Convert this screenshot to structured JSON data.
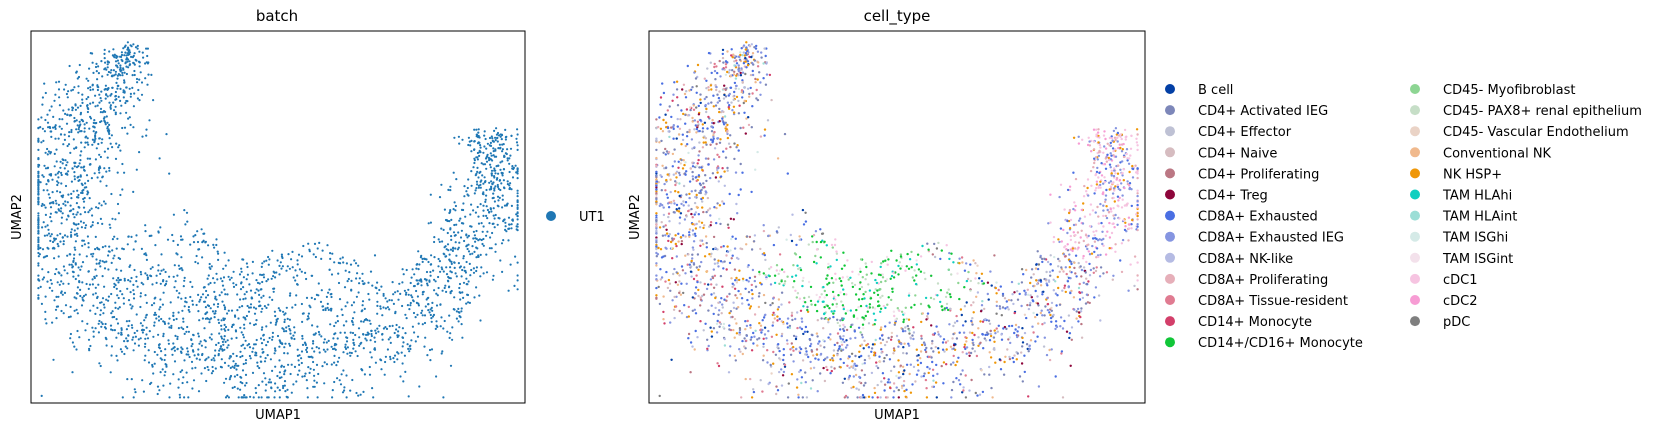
{
  "chart_data": [
    {
      "type": "scatter",
      "title": "batch",
      "xlabel": "UMAP1",
      "ylabel": "UMAP2",
      "grid": false,
      "legend_position": "right",
      "series": [
        {
          "name": "UT1",
          "color": "#1f77b4"
        }
      ]
    },
    {
      "type": "scatter",
      "title": "cell_type",
      "xlabel": "UMAP1",
      "ylabel": "UMAP2",
      "grid": false,
      "legend_position": "right",
      "series": [
        {
          "name": "B cell",
          "color": "#023fa5"
        },
        {
          "name": "CD4+ Activated IEG",
          "color": "#7d87b9"
        },
        {
          "name": "CD4+ Effector",
          "color": "#bec1d4"
        },
        {
          "name": "CD4+ Naive",
          "color": "#d6bcc0"
        },
        {
          "name": "CD4+ Proliferating",
          "color": "#bb7784"
        },
        {
          "name": "CD4+ Treg",
          "color": "#8e063b"
        },
        {
          "name": "CD8A+ Exhausted",
          "color": "#4a6fe3"
        },
        {
          "name": "CD8A+ Exhausted IEG",
          "color": "#8595e1"
        },
        {
          "name": "CD8A+ NK-like",
          "color": "#b5bbe3"
        },
        {
          "name": "CD8A+ Proliferating",
          "color": "#e6afb9"
        },
        {
          "name": "CD8A+ Tissue-resident",
          "color": "#e07b91"
        },
        {
          "name": "CD14+ Monocyte",
          "color": "#d33f6a"
        },
        {
          "name": "CD14+/CD16+ Monocyte",
          "color": "#11c638"
        },
        {
          "name": "CD45- Myofibroblast",
          "color": "#8dd593"
        },
        {
          "name": "CD45- PAX8+ renal epithelium",
          "color": "#c6dec7"
        },
        {
          "name": "CD45- Vascular Endothelium",
          "color": "#ead3c6"
        },
        {
          "name": "Conventional NK",
          "color": "#f0b98d"
        },
        {
          "name": "NK HSP+",
          "color": "#ef9708"
        },
        {
          "name": "TAM HLAhi",
          "color": "#0fcfc0"
        },
        {
          "name": "TAM HLAint",
          "color": "#9cded6"
        },
        {
          "name": "TAM ISGhi",
          "color": "#d5eae7"
        },
        {
          "name": "TAM ISGint",
          "color": "#f3e1eb"
        },
        {
          "name": "cDC1",
          "color": "#f6c4e1"
        },
        {
          "name": "cDC2",
          "color": "#f79cd4"
        },
        {
          "name": "pDC",
          "color": "#7f7f7f"
        }
      ]
    }
  ]
}
